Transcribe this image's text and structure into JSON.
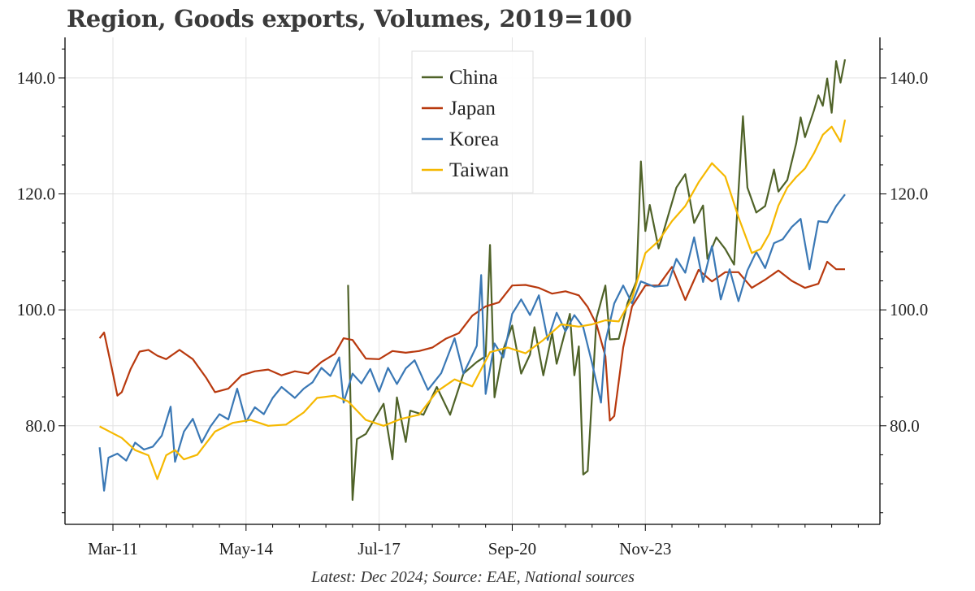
{
  "chart_data": {
    "type": "line",
    "title": "Region, Goods exports, Volumes, 2019=100",
    "caption": "Latest: Dec 2024; Source: EAE, National sources",
    "xlabel": "",
    "ylabel": "",
    "x_tick_labels": [
      "Mar-11",
      "May-14",
      "Jul-17",
      "Sep-20",
      "Nov-23"
    ],
    "y_ticks": [
      80.0,
      100.0,
      120.0,
      140.0
    ],
    "y_tick_labels": [
      "80.0",
      "100.0",
      "120.0",
      "140.0"
    ],
    "ylim": [
      63,
      147
    ],
    "xlim": [
      "2010-10",
      "2025-06"
    ],
    "grid": true,
    "legend_position": "top-center",
    "series": [
      {
        "name": "China",
        "color": "#4f6228",
        "points": [
          [
            "2015-08",
            104.3
          ],
          [
            "2015-09",
            67.2
          ],
          [
            "2015-10",
            77.7
          ],
          [
            "2015-12",
            78.6
          ],
          [
            "2016-02",
            81.2
          ],
          [
            "2016-04",
            83.8
          ],
          [
            "2016-06",
            74.2
          ],
          [
            "2016-07",
            84.9
          ],
          [
            "2016-09",
            77.2
          ],
          [
            "2016-10",
            82.6
          ],
          [
            "2017-01",
            81.9
          ],
          [
            "2017-04",
            86.7
          ],
          [
            "2017-07",
            81.9
          ],
          [
            "2017-10",
            89.0
          ],
          [
            "2018-01",
            91.0
          ],
          [
            "2018-03",
            92.0
          ],
          [
            "2018-04",
            111.2
          ],
          [
            "2018-05",
            84.9
          ],
          [
            "2018-07",
            93.2
          ],
          [
            "2018-09",
            97.3
          ],
          [
            "2018-11",
            89.0
          ],
          [
            "2019-01",
            92.3
          ],
          [
            "2019-02",
            97.0
          ],
          [
            "2019-04",
            88.7
          ],
          [
            "2019-06",
            96.0
          ],
          [
            "2019-07",
            90.7
          ],
          [
            "2019-10",
            99.3
          ],
          [
            "2019-11",
            88.7
          ],
          [
            "2019-12",
            93.7
          ],
          [
            "2020-01",
            71.6
          ],
          [
            "2020-02",
            72.2
          ],
          [
            "2020-04",
            98.6
          ],
          [
            "2020-06",
            104.2
          ],
          [
            "2020-07",
            94.9
          ],
          [
            "2020-09",
            95.0
          ],
          [
            "2020-11",
            101.2
          ],
          [
            "2021-01",
            104.9
          ],
          [
            "2021-02",
            125.6
          ],
          [
            "2021-03",
            113.6
          ],
          [
            "2021-04",
            118.1
          ],
          [
            "2021-06",
            110.6
          ],
          [
            "2021-08",
            115.9
          ],
          [
            "2021-10",
            121.1
          ],
          [
            "2021-12",
            123.4
          ],
          [
            "2022-02",
            115.0
          ],
          [
            "2022-04",
            118.0
          ],
          [
            "2022-05",
            108.8
          ],
          [
            "2022-07",
            112.5
          ],
          [
            "2022-09",
            110.5
          ],
          [
            "2022-11",
            107.8
          ],
          [
            "2023-01",
            133.4
          ],
          [
            "2023-02",
            121.1
          ],
          [
            "2023-04",
            116.8
          ],
          [
            "2023-06",
            117.9
          ],
          [
            "2023-08",
            124.2
          ],
          [
            "2023-09",
            120.4
          ],
          [
            "2023-11",
            122.4
          ],
          [
            "2024-01",
            128.7
          ],
          [
            "2024-02",
            133.2
          ],
          [
            "2024-03",
            129.8
          ],
          [
            "2024-05",
            134.4
          ],
          [
            "2024-06",
            137.0
          ],
          [
            "2024-07",
            135.2
          ],
          [
            "2024-08",
            139.9
          ],
          [
            "2024-09",
            134.0
          ],
          [
            "2024-10",
            142.9
          ],
          [
            "2024-11",
            139.2
          ],
          [
            "2024-12",
            143.2
          ]
        ]
      },
      {
        "name": "Japan",
        "color": "#b8390e",
        "points": [
          [
            "2010-12",
            95.1
          ],
          [
            "2011-01",
            96.1
          ],
          [
            "2011-03",
            89.0
          ],
          [
            "2011-04",
            85.2
          ],
          [
            "2011-05",
            85.8
          ],
          [
            "2011-07",
            89.8
          ],
          [
            "2011-09",
            92.8
          ],
          [
            "2011-11",
            93.1
          ],
          [
            "2012-01",
            92.1
          ],
          [
            "2012-03",
            91.5
          ],
          [
            "2012-06",
            93.1
          ],
          [
            "2012-09",
            91.5
          ],
          [
            "2012-12",
            88.3
          ],
          [
            "2013-02",
            85.8
          ],
          [
            "2013-05",
            86.4
          ],
          [
            "2013-08",
            88.7
          ],
          [
            "2013-11",
            89.4
          ],
          [
            "2014-02",
            89.7
          ],
          [
            "2014-05",
            88.7
          ],
          [
            "2014-08",
            89.4
          ],
          [
            "2014-11",
            89.0
          ],
          [
            "2015-02",
            91.0
          ],
          [
            "2015-05",
            92.4
          ],
          [
            "2015-07",
            95.1
          ],
          [
            "2015-09",
            94.8
          ],
          [
            "2015-12",
            91.6
          ],
          [
            "2016-03",
            91.5
          ],
          [
            "2016-06",
            92.9
          ],
          [
            "2016-09",
            92.6
          ],
          [
            "2016-12",
            92.9
          ],
          [
            "2017-03",
            93.5
          ],
          [
            "2017-06",
            95.0
          ],
          [
            "2017-09",
            96.0
          ],
          [
            "2017-12",
            99.0
          ],
          [
            "2018-03",
            100.6
          ],
          [
            "2018-06",
            101.3
          ],
          [
            "2018-09",
            104.2
          ],
          [
            "2018-12",
            104.3
          ],
          [
            "2019-03",
            103.8
          ],
          [
            "2019-06",
            102.8
          ],
          [
            "2019-09",
            103.2
          ],
          [
            "2019-12",
            102.5
          ],
          [
            "2020-02",
            100.5
          ],
          [
            "2020-04",
            97.5
          ],
          [
            "2020-06",
            92.0
          ],
          [
            "2020-07",
            80.9
          ],
          [
            "2020-08",
            81.7
          ],
          [
            "2020-10",
            93.5
          ],
          [
            "2020-12",
            100.6
          ],
          [
            "2021-03",
            104.2
          ],
          [
            "2021-06",
            104.2
          ],
          [
            "2021-09",
            107.4
          ],
          [
            "2021-12",
            101.7
          ],
          [
            "2022-03",
            106.9
          ],
          [
            "2022-06",
            104.9
          ],
          [
            "2022-09",
            106.5
          ],
          [
            "2022-12",
            106.5
          ],
          [
            "2023-03",
            103.8
          ],
          [
            "2023-06",
            105.2
          ],
          [
            "2023-09",
            106.8
          ],
          [
            "2023-12",
            105.0
          ],
          [
            "2024-03",
            103.8
          ],
          [
            "2024-06",
            104.5
          ],
          [
            "2024-08",
            108.3
          ],
          [
            "2024-10",
            107.0
          ],
          [
            "2024-12",
            107.0
          ]
        ]
      },
      {
        "name": "Korea",
        "color": "#3a78b5",
        "points": [
          [
            "2010-12",
            76.3
          ],
          [
            "2011-01",
            68.8
          ],
          [
            "2011-02",
            74.5
          ],
          [
            "2011-04",
            75.2
          ],
          [
            "2011-06",
            74.0
          ],
          [
            "2011-08",
            77.1
          ],
          [
            "2011-10",
            75.9
          ],
          [
            "2011-12",
            76.4
          ],
          [
            "2012-02",
            78.3
          ],
          [
            "2012-04",
            83.3
          ],
          [
            "2012-05",
            73.8
          ],
          [
            "2012-07",
            79.0
          ],
          [
            "2012-09",
            81.2
          ],
          [
            "2012-11",
            77.1
          ],
          [
            "2013-01",
            79.9
          ],
          [
            "2013-03",
            82.0
          ],
          [
            "2013-05",
            81.1
          ],
          [
            "2013-07",
            86.4
          ],
          [
            "2013-09",
            80.7
          ],
          [
            "2013-11",
            83.2
          ],
          [
            "2014-01",
            82.0
          ],
          [
            "2014-03",
            84.8
          ],
          [
            "2014-05",
            86.7
          ],
          [
            "2014-08",
            84.8
          ],
          [
            "2014-10",
            86.4
          ],
          [
            "2014-12",
            87.5
          ],
          [
            "2015-02",
            90.0
          ],
          [
            "2015-04",
            88.6
          ],
          [
            "2015-06",
            91.8
          ],
          [
            "2015-07",
            84.0
          ],
          [
            "2015-09",
            89.0
          ],
          [
            "2015-11",
            87.3
          ],
          [
            "2016-01",
            89.8
          ],
          [
            "2016-03",
            85.9
          ],
          [
            "2016-05",
            90.0
          ],
          [
            "2016-07",
            87.2
          ],
          [
            "2016-09",
            89.9
          ],
          [
            "2016-11",
            91.3
          ],
          [
            "2017-02",
            86.2
          ],
          [
            "2017-05",
            89.1
          ],
          [
            "2017-08",
            95.1
          ],
          [
            "2017-10",
            89.0
          ],
          [
            "2018-01",
            93.8
          ],
          [
            "2018-02",
            106.0
          ],
          [
            "2018-03",
            85.5
          ],
          [
            "2018-05",
            94.2
          ],
          [
            "2018-07",
            91.8
          ],
          [
            "2018-09",
            99.3
          ],
          [
            "2018-11",
            101.8
          ],
          [
            "2019-01",
            99.1
          ],
          [
            "2019-03",
            102.5
          ],
          [
            "2019-05",
            94.8
          ],
          [
            "2019-07",
            99.5
          ],
          [
            "2019-09",
            96.3
          ],
          [
            "2019-11",
            99.1
          ],
          [
            "2020-01",
            97.0
          ],
          [
            "2020-03",
            90.8
          ],
          [
            "2020-05",
            84.0
          ],
          [
            "2020-06",
            94.5
          ],
          [
            "2020-08",
            101.1
          ],
          [
            "2020-10",
            104.2
          ],
          [
            "2020-12",
            101.1
          ],
          [
            "2021-02",
            104.9
          ],
          [
            "2021-05",
            104.0
          ],
          [
            "2021-08",
            104.2
          ],
          [
            "2021-10",
            108.8
          ],
          [
            "2021-12",
            106.4
          ],
          [
            "2022-02",
            112.5
          ],
          [
            "2022-04",
            104.8
          ],
          [
            "2022-06",
            111.0
          ],
          [
            "2022-08",
            101.8
          ],
          [
            "2022-10",
            107.0
          ],
          [
            "2022-12",
            101.5
          ],
          [
            "2023-02",
            106.8
          ],
          [
            "2023-04",
            110.0
          ],
          [
            "2023-06",
            107.2
          ],
          [
            "2023-08",
            111.5
          ],
          [
            "2023-10",
            112.2
          ],
          [
            "2023-12",
            114.3
          ],
          [
            "2024-02",
            115.7
          ],
          [
            "2024-04",
            107.0
          ],
          [
            "2024-06",
            115.3
          ],
          [
            "2024-08",
            115.1
          ],
          [
            "2024-10",
            117.9
          ],
          [
            "2024-12",
            119.9
          ]
        ]
      },
      {
        "name": "Taiwan",
        "color": "#f5b800",
        "points": [
          [
            "2010-12",
            79.9
          ],
          [
            "2011-02",
            79.1
          ],
          [
            "2011-05",
            77.9
          ],
          [
            "2011-08",
            75.8
          ],
          [
            "2011-11",
            74.9
          ],
          [
            "2012-01",
            70.8
          ],
          [
            "2012-03",
            74.9
          ],
          [
            "2012-05",
            75.8
          ],
          [
            "2012-07",
            74.2
          ],
          [
            "2012-10",
            75.0
          ],
          [
            "2013-02",
            79.0
          ],
          [
            "2013-06",
            80.5
          ],
          [
            "2013-10",
            81.0
          ],
          [
            "2014-02",
            80.0
          ],
          [
            "2014-06",
            80.2
          ],
          [
            "2014-10",
            82.3
          ],
          [
            "2015-01",
            84.8
          ],
          [
            "2015-05",
            85.2
          ],
          [
            "2015-08",
            84.2
          ],
          [
            "2015-12",
            81.0
          ],
          [
            "2016-04",
            80.0
          ],
          [
            "2016-08",
            81.2
          ],
          [
            "2016-12",
            81.9
          ],
          [
            "2017-04",
            85.9
          ],
          [
            "2017-08",
            88.0
          ],
          [
            "2017-12",
            86.8
          ],
          [
            "2018-04",
            92.7
          ],
          [
            "2018-08",
            93.5
          ],
          [
            "2018-12",
            92.5
          ],
          [
            "2019-04",
            94.8
          ],
          [
            "2019-08",
            97.5
          ],
          [
            "2019-12",
            97.1
          ],
          [
            "2020-03",
            97.5
          ],
          [
            "2020-06",
            98.2
          ],
          [
            "2020-09",
            98.0
          ],
          [
            "2020-12",
            102.0
          ],
          [
            "2021-03",
            109.8
          ],
          [
            "2021-06",
            111.9
          ],
          [
            "2021-09",
            115.3
          ],
          [
            "2021-12",
            117.9
          ],
          [
            "2022-03",
            122.0
          ],
          [
            "2022-06",
            125.3
          ],
          [
            "2022-09",
            123.0
          ],
          [
            "2022-12",
            116.0
          ],
          [
            "2023-03",
            109.8
          ],
          [
            "2023-05",
            110.5
          ],
          [
            "2023-07",
            113.2
          ],
          [
            "2023-09",
            118.0
          ],
          [
            "2023-11",
            121.1
          ],
          [
            "2024-01",
            122.9
          ],
          [
            "2024-03",
            124.4
          ],
          [
            "2024-05",
            127.0
          ],
          [
            "2024-07",
            130.2
          ],
          [
            "2024-09",
            131.6
          ],
          [
            "2024-11",
            129.0
          ],
          [
            "2024-12",
            132.8
          ]
        ]
      }
    ]
  }
}
